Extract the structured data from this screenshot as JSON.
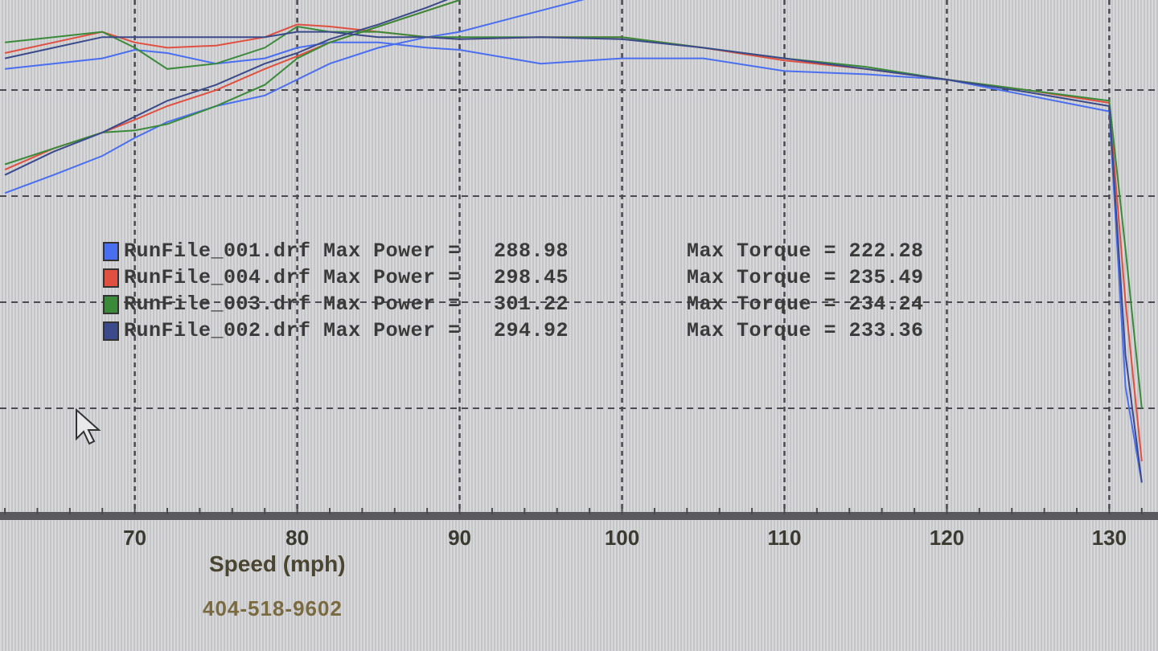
{
  "chart_data": {
    "type": "line",
    "xlabel": "Speed (mph)",
    "ylabel": "",
    "xlim": [
      61.7,
      133
    ],
    "ylim": [
      0,
      4.85
    ],
    "x_ticks": [
      70,
      80,
      90,
      100,
      110,
      120,
      130
    ],
    "grid": true,
    "y_units_note_visible": false,
    "x": [
      62,
      65,
      68,
      70,
      72,
      75,
      78,
      80,
      82,
      85,
      88,
      90,
      95,
      100,
      105,
      110,
      115,
      120,
      125,
      130,
      131,
      132
    ],
    "series": [
      {
        "name": "RunFile_001.drf",
        "color": "#4a6ef0",
        "max_power": "288.98",
        "max_torque": "222.28",
        "torque": [
          4.2,
          4.25,
          4.3,
          4.38,
          4.35,
          4.25,
          4.3,
          4.4,
          4.45,
          4.45,
          4.4,
          4.38,
          4.25,
          4.3,
          4.3,
          4.18,
          4.15,
          4.1,
          3.95,
          3.8,
          1.2,
          0.3
        ],
        "power": [
          3.03,
          3.2,
          3.38,
          3.55,
          3.7,
          3.85,
          3.95,
          4.1,
          4.25,
          4.4,
          4.5,
          4.55,
          4.75,
          4.95,
          null,
          null,
          null,
          null,
          null,
          null,
          null,
          null
        ]
      },
      {
        "name": "RunFile_004.drf",
        "color": "#e05040",
        "max_power": "298.45",
        "max_torque": "235.49",
        "torque": [
          4.35,
          4.45,
          4.55,
          4.45,
          4.4,
          4.42,
          4.5,
          4.62,
          4.6,
          4.55,
          4.5,
          4.48,
          4.5,
          4.5,
          4.4,
          4.28,
          4.2,
          4.1,
          4.0,
          3.88,
          2.0,
          0.5
        ],
        "power": [
          3.25,
          3.45,
          3.6,
          3.72,
          3.85,
          4.0,
          4.2,
          4.32,
          4.45,
          4.6,
          4.75,
          4.85,
          null,
          null,
          null,
          null,
          null,
          null,
          null,
          null,
          null,
          null
        ]
      },
      {
        "name": "RunFile_003.drf",
        "color": "#3a8a3a",
        "max_power": "301.22",
        "max_torque": "234.24",
        "torque": [
          4.45,
          4.5,
          4.55,
          4.4,
          4.2,
          4.25,
          4.4,
          4.6,
          4.55,
          4.55,
          4.5,
          4.5,
          4.5,
          4.5,
          4.4,
          4.3,
          4.22,
          4.1,
          4.0,
          3.9,
          2.5,
          1.0
        ],
        "power": [
          3.3,
          3.45,
          3.6,
          3.62,
          3.68,
          3.85,
          4.05,
          4.3,
          4.45,
          4.6,
          4.75,
          4.85,
          null,
          null,
          null,
          null,
          null,
          null,
          null,
          null,
          null,
          null
        ]
      },
      {
        "name": "RunFile_002.drf",
        "color": "#3a4a8a",
        "max_power": "294.92",
        "max_torque": "233.36",
        "torque": [
          4.3,
          4.4,
          4.5,
          4.5,
          4.5,
          4.5,
          4.5,
          4.55,
          4.55,
          4.5,
          4.5,
          4.48,
          4.5,
          4.48,
          4.4,
          4.3,
          4.2,
          4.1,
          3.98,
          3.85,
          1.5,
          0.3
        ],
        "power": [
          3.2,
          3.42,
          3.6,
          3.75,
          3.9,
          4.05,
          4.25,
          4.35,
          4.48,
          4.62,
          4.78,
          4.9,
          null,
          null,
          null,
          null,
          null,
          null,
          null,
          null,
          null,
          null
        ]
      }
    ],
    "legend": {
      "position": "center-left",
      "power_label": "Max Power =",
      "torque_label": "Max Torque ="
    }
  },
  "footer": {
    "phone": "404-518-9602"
  }
}
